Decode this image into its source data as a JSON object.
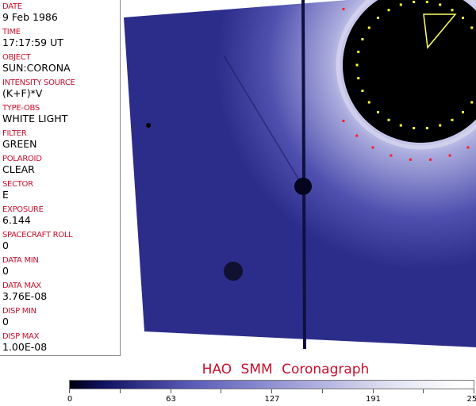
{
  "header_fields": [
    {
      "label": "DATE",
      "value": "9 Feb 1986"
    },
    {
      "label": "TIME",
      "value": "17:17:59 UT"
    },
    {
      "label": "OBJECT",
      "value": "SUN:CORONA"
    },
    {
      "label": "INTENSITY SOURCE",
      "value": "(K+F)*V"
    },
    {
      "label": "TYPE-OBS",
      "value": "WHITE LIGHT"
    },
    {
      "label": "FILTER",
      "value": "GREEN"
    },
    {
      "label": "POLAROID",
      "value": "CLEAR"
    },
    {
      "label": "SECTOR",
      "value": "E"
    },
    {
      "label": "EXPOSURE",
      "value": "6.144"
    },
    {
      "label": "SPACECRAFT ROLL",
      "value": "0"
    },
    {
      "label": "DATA MIN",
      "value": "0"
    },
    {
      "label": "DATA MAX",
      "value": "3.76E-08"
    },
    {
      "label": "DISP MIN",
      "value": "0"
    },
    {
      "label": "DISP MAX",
      "value": "1.00E-08"
    }
  ],
  "title": "HAO  SMM Coronagraph",
  "colorbar": {
    "ticks": [
      "0",
      "63",
      "127",
      "191",
      "255"
    ],
    "min": 0,
    "max": 255,
    "colormap": "dark-blue to white"
  },
  "colors": {
    "label": "#c8102e",
    "image_blue": "#3a3a9e"
  }
}
